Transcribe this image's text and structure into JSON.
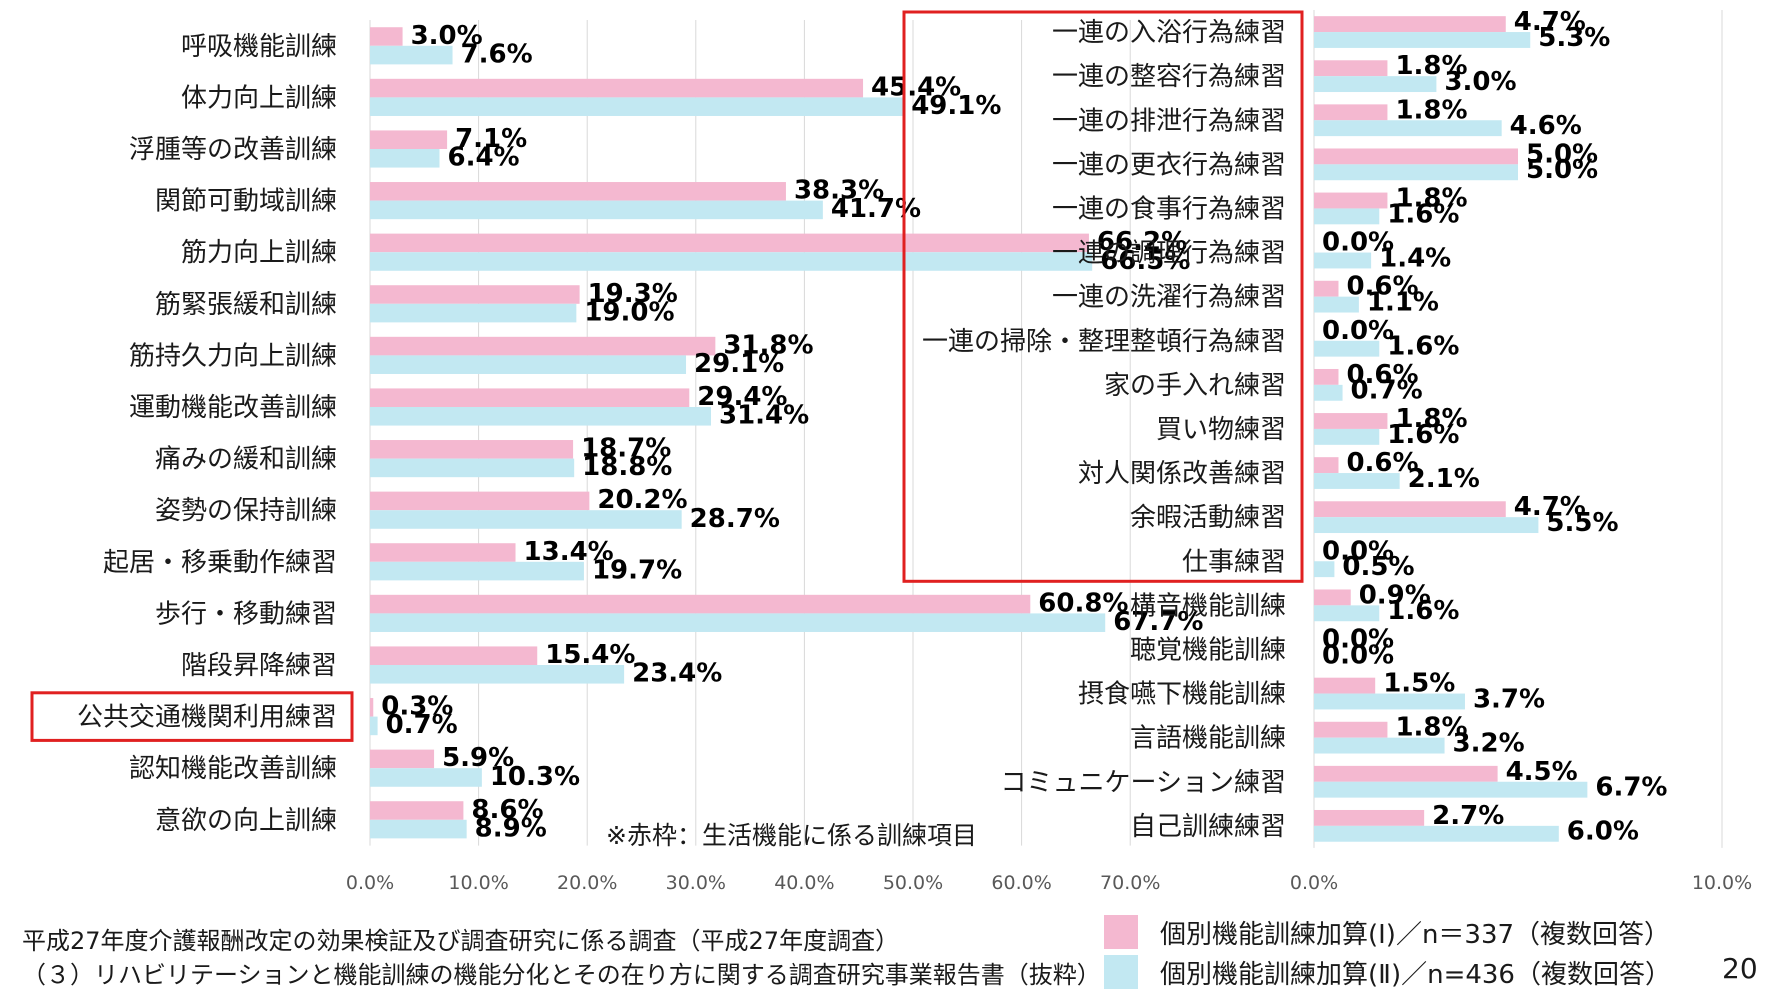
{
  "colors": {
    "series1": "#f4b8d0",
    "series2": "#c2e8f2",
    "highlight": "#e02020"
  },
  "chart_data": [
    {
      "type": "bar",
      "orientation": "horizontal",
      "categories": [
        "呼吸機能訓練",
        "体力向上訓練",
        "浮腫等の改善訓練",
        "関節可動域訓練",
        "筋力向上訓練",
        "筋緊張緩和訓練",
        "筋持久力向上訓練",
        "運動機能改善訓練",
        "痛みの緩和訓練",
        "姿勢の保持訓練",
        "起居・移乗動作練習",
        "歩行・移動練習",
        "階段昇降練習",
        "公共交通機関利用練習",
        "認知機能改善訓練",
        "意欲の向上訓練"
      ],
      "series": [
        {
          "name": "個別機能訓練加算(Ⅰ)／n＝337（複数回答）",
          "values": [
            3.0,
            45.4,
            7.1,
            38.3,
            66.2,
            19.3,
            31.8,
            29.4,
            18.7,
            20.2,
            13.4,
            60.8,
            15.4,
            0.3,
            5.9,
            8.6
          ]
        },
        {
          "name": "個別機能訓練加算(Ⅱ)／n=436（複数回答）",
          "values": [
            7.6,
            49.1,
            6.4,
            41.7,
            66.5,
            19.0,
            29.1,
            31.4,
            18.8,
            28.7,
            19.7,
            67.7,
            23.4,
            0.7,
            10.3,
            8.9
          ]
        }
      ],
      "value_labels": [
        [
          "3.0%",
          "45.4%",
          "7.1%",
          "38.3%",
          "66.2%",
          "19.3%",
          "31.8%",
          "29.4%",
          "18.7%",
          "20.2%",
          "13.4%",
          "60.8%",
          "15.4%",
          "0.3%",
          "5.9%",
          "8.6%"
        ],
        [
          "7.6%",
          "49.1%",
          "6.4%",
          "41.7%",
          "66.5%",
          "19.0%",
          "29.1%",
          "31.4%",
          "18.8%",
          "28.7%",
          "19.7%",
          "67.7%",
          "23.4%",
          "0.7%",
          "10.3%",
          "8.9%"
        ]
      ],
      "xlim": [
        0,
        70
      ],
      "ticks": [
        "0.0%",
        "10.0%",
        "20.0%",
        "30.0%",
        "40.0%",
        "50.0%",
        "60.0%",
        "70.0%"
      ],
      "grid": true,
      "highlighted_categories": [
        "公共交通機関利用練習"
      ]
    },
    {
      "type": "bar",
      "orientation": "horizontal",
      "categories": [
        "一連の入浴行為練習",
        "一連の整容行為練習",
        "一連の排泄行為練習",
        "一連の更衣行為練習",
        "一連の食事行為練習",
        "一連の調理行為練習",
        "一連の洗濯行為練習",
        "一連の掃除・整理整頓行為練習",
        "家の手入れ練習",
        "買い物練習",
        "対人関係改善練習",
        "余暇活動練習",
        "仕事練習",
        "構音機能訓練",
        "聴覚機能訓練",
        "摂食嚥下機能訓練",
        "言語機能訓練",
        "コミュニケーション練習",
        "自己訓練練習"
      ],
      "series": [
        {
          "name": "個別機能訓練加算(Ⅰ)／n＝337（複数回答）",
          "values": [
            4.7,
            1.8,
            1.8,
            5.0,
            1.8,
            0.0,
            0.6,
            0.0,
            0.6,
            1.8,
            0.6,
            4.7,
            0.0,
            0.9,
            0.0,
            1.5,
            1.8,
            4.5,
            2.7
          ]
        },
        {
          "name": "個別機能訓練加算(Ⅱ)／n=436（複数回答）",
          "values": [
            5.3,
            3.0,
            4.6,
            5.0,
            1.6,
            1.4,
            1.1,
            1.6,
            0.7,
            1.6,
            2.1,
            5.5,
            0.5,
            1.6,
            0.0,
            3.7,
            3.2,
            6.7,
            6.0
          ]
        }
      ],
      "value_labels": [
        [
          "4.7%",
          "1.8%",
          "1.8%",
          "5.0%",
          "1.8%",
          "0.0%",
          "0.6%",
          "0.0%",
          "0.6%",
          "1.8%",
          "0.6%",
          "4.7%",
          "0.0%",
          "0.9%",
          "0.0%",
          "1.5%",
          "1.8%",
          "4.5%",
          "2.7%"
        ],
        [
          "5.3%",
          "3.0%",
          "4.6%",
          "5.0%",
          "1.6%",
          "1.4%",
          "1.1%",
          "1.6%",
          "0.7%",
          "1.6%",
          "2.1%",
          "5.5%",
          "0.5%",
          "1.6%",
          "0.0%",
          "3.7%",
          "3.2%",
          "6.7%",
          "6.0%"
        ]
      ],
      "xlim": [
        0,
        10
      ],
      "ticks": [
        "0.0%",
        "10.0%"
      ],
      "grid": true,
      "highlighted_categories": [
        "一連の入浴行為練習",
        "一連の整容行為練習",
        "一連の排泄行為練習",
        "一連の更衣行為練習",
        "一連の食事行為練習",
        "一連の調理行為練習",
        "一連の洗濯行為練習",
        "一連の掃除・整理整頓行為練習",
        "家の手入れ練習",
        "買い物練習",
        "対人関係改善練習",
        "余暇活動練習",
        "仕事練習"
      ]
    }
  ],
  "note": "※赤枠：生活機能に係る訓練項目",
  "legend": [
    "個別機能訓練加算(Ⅰ)／n＝337（複数回答）",
    "個別機能訓練加算(Ⅱ)／n=436（複数回答）"
  ],
  "footnote": [
    "平成27年度介護報酬改定の効果検証及び調査研究に係る調査（平成27年度調査）",
    "（３）リハビリテーションと機能訓練の機能分化とその在り方に関する調査研究事業報告書（抜粋）"
  ],
  "page_number": "20"
}
